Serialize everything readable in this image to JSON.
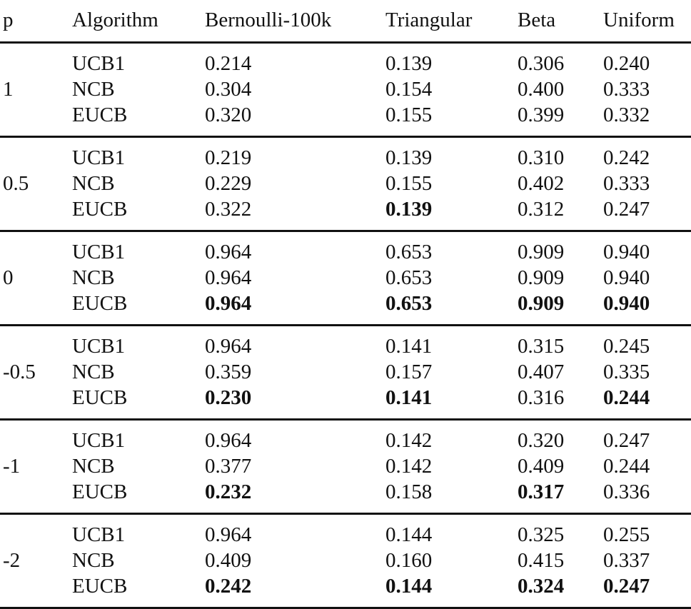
{
  "table": {
    "headers": [
      "p",
      "Algorithm",
      "Bernoulli-100k",
      "Triangular",
      "Beta",
      "Uniform"
    ],
    "groups": [
      {
        "p": "1",
        "rows": [
          {
            "algorithm": "UCB1",
            "values": [
              "0.214",
              "0.139",
              "0.306",
              "0.240"
            ],
            "bold": [
              false,
              false,
              false,
              false
            ]
          },
          {
            "algorithm": "NCB",
            "values": [
              "0.304",
              "0.154",
              "0.400",
              "0.333"
            ],
            "bold": [
              false,
              false,
              false,
              false
            ]
          },
          {
            "algorithm": "EUCB",
            "values": [
              "0.320",
              "0.155",
              "0.399",
              "0.332"
            ],
            "bold": [
              false,
              false,
              false,
              false
            ]
          }
        ]
      },
      {
        "p": "0.5",
        "rows": [
          {
            "algorithm": "UCB1",
            "values": [
              "0.219",
              "0.139",
              "0.310",
              "0.242"
            ],
            "bold": [
              false,
              false,
              false,
              false
            ]
          },
          {
            "algorithm": "NCB",
            "values": [
              "0.229",
              "0.155",
              "0.402",
              "0.333"
            ],
            "bold": [
              false,
              false,
              false,
              false
            ]
          },
          {
            "algorithm": "EUCB",
            "values": [
              "0.322",
              "0.139",
              "0.312",
              "0.247"
            ],
            "bold": [
              false,
              true,
              false,
              false
            ]
          }
        ]
      },
      {
        "p": "0",
        "rows": [
          {
            "algorithm": "UCB1",
            "values": [
              "0.964",
              "0.653",
              "0.909",
              "0.940"
            ],
            "bold": [
              false,
              false,
              false,
              false
            ]
          },
          {
            "algorithm": "NCB",
            "values": [
              "0.964",
              "0.653",
              "0.909",
              "0.940"
            ],
            "bold": [
              false,
              false,
              false,
              false
            ]
          },
          {
            "algorithm": "EUCB",
            "values": [
              "0.964",
              "0.653",
              "0.909",
              "0.940"
            ],
            "bold": [
              true,
              true,
              true,
              true
            ]
          }
        ]
      },
      {
        "p": "-0.5",
        "rows": [
          {
            "algorithm": "UCB1",
            "values": [
              "0.964",
              "0.141",
              "0.315",
              "0.245"
            ],
            "bold": [
              false,
              false,
              false,
              false
            ]
          },
          {
            "algorithm": "NCB",
            "values": [
              "0.359",
              "0.157",
              "0.407",
              "0.335"
            ],
            "bold": [
              false,
              false,
              false,
              false
            ]
          },
          {
            "algorithm": "EUCB",
            "values": [
              "0.230",
              "0.141",
              "0.316",
              "0.244"
            ],
            "bold": [
              true,
              true,
              false,
              true
            ]
          }
        ]
      },
      {
        "p": "-1",
        "rows": [
          {
            "algorithm": "UCB1",
            "values": [
              "0.964",
              "0.142",
              "0.320",
              "0.247"
            ],
            "bold": [
              false,
              false,
              false,
              false
            ]
          },
          {
            "algorithm": "NCB",
            "values": [
              "0.377",
              "0.142",
              "0.409",
              "0.244"
            ],
            "bold": [
              false,
              false,
              false,
              false
            ]
          },
          {
            "algorithm": "EUCB",
            "values": [
              "0.232",
              "0.158",
              "0.317",
              "0.336"
            ],
            "bold": [
              true,
              false,
              true,
              false
            ]
          }
        ]
      },
      {
        "p": "-2",
        "rows": [
          {
            "algorithm": "UCB1",
            "values": [
              "0.964",
              "0.144",
              "0.325",
              "0.255"
            ],
            "bold": [
              false,
              false,
              false,
              false
            ]
          },
          {
            "algorithm": "NCB",
            "values": [
              "0.409",
              "0.160",
              "0.415",
              "0.337"
            ],
            "bold": [
              false,
              false,
              false,
              false
            ]
          },
          {
            "algorithm": "EUCB",
            "values": [
              "0.242",
              "0.144",
              "0.324",
              "0.247"
            ],
            "bold": [
              true,
              true,
              true,
              true
            ]
          }
        ]
      }
    ]
  }
}
